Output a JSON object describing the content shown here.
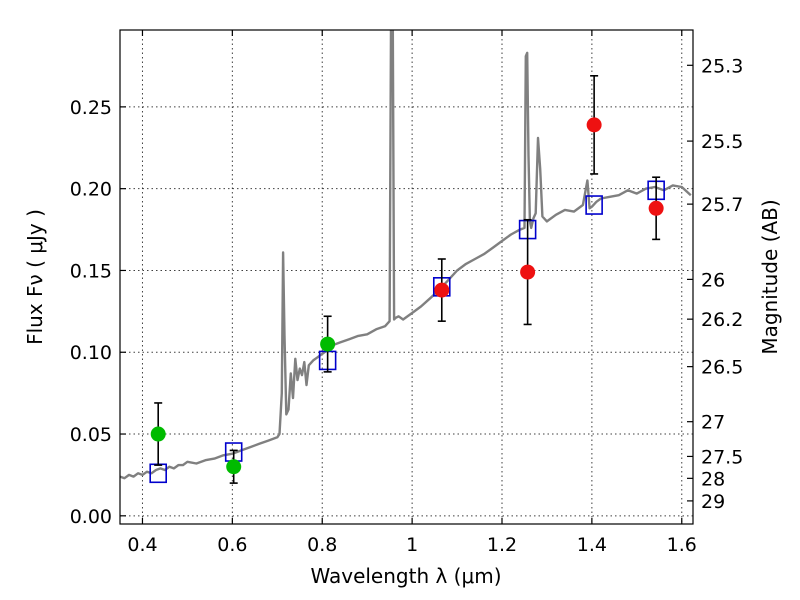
{
  "chart_data": {
    "type": "scatter",
    "title": "",
    "xlabel": "Wavelength  λ (μm)",
    "ylabel": "Flux  Fν  ( μJy )",
    "ylabel_right": "Magnitude (AB)",
    "xlim": [
      0.35,
      1.625
    ],
    "ylim": [
      -0.005,
      0.297
    ],
    "grid": true,
    "x_ticks": [
      0.4,
      0.6,
      0.8,
      1.0,
      1.2,
      1.4,
      1.6
    ],
    "x_tick_labels": [
      "0.4",
      "0.6",
      "0.8",
      "1",
      "1.2",
      "1.4",
      "1.6"
    ],
    "y_ticks": [
      0.0,
      0.05,
      0.1,
      0.15,
      0.2,
      0.25
    ],
    "y_tick_labels": [
      "0.00",
      "0.05",
      "0.10",
      "0.15",
      "0.20",
      "0.25"
    ],
    "mag_ticks": [
      "25.3",
      "25.5",
      "25.7",
      "26",
      "26.2",
      "26.5",
      "27",
      "27.5",
      "28",
      "29"
    ],
    "colors": {
      "spectrum": "#808080",
      "model_box": "#0000cc",
      "green_points": "#00bb00",
      "red_points": "#ee1111",
      "errorbar": "#000000"
    },
    "series": [
      {
        "kind": "line",
        "x": [
          0.35,
          0.36,
          0.37,
          0.38,
          0.39,
          0.4,
          0.41,
          0.42,
          0.43,
          0.44,
          0.45,
          0.46,
          0.47,
          0.48,
          0.49,
          0.5,
          0.52,
          0.54,
          0.56,
          0.58,
          0.6,
          0.62,
          0.64,
          0.66,
          0.68,
          0.7,
          0.705,
          0.71,
          0.713,
          0.716,
          0.72,
          0.725,
          0.73,
          0.735,
          0.74,
          0.745,
          0.75,
          0.755,
          0.76,
          0.765,
          0.77,
          0.78,
          0.79,
          0.8,
          0.81,
          0.82,
          0.84,
          0.86,
          0.88,
          0.9,
          0.92,
          0.94,
          0.95,
          0.953,
          0.955,
          0.957,
          0.96,
          0.963,
          0.97,
          0.98,
          1.0,
          1.02,
          1.04,
          1.06,
          1.08,
          1.1,
          1.12,
          1.14,
          1.16,
          1.18,
          1.2,
          1.22,
          1.24,
          1.25,
          1.253,
          1.256,
          1.259,
          1.262,
          1.265,
          1.27,
          1.275,
          1.28,
          1.285,
          1.29,
          1.3,
          1.32,
          1.34,
          1.36,
          1.38,
          1.39,
          1.395,
          1.4,
          1.41,
          1.42,
          1.44,
          1.46,
          1.48,
          1.5,
          1.52,
          1.54,
          1.56,
          1.58,
          1.6,
          1.62
        ],
        "y": [
          0.024,
          0.023,
          0.025,
          0.024,
          0.026,
          0.025,
          0.027,
          0.026,
          0.028,
          0.029,
          0.028,
          0.03,
          0.029,
          0.031,
          0.031,
          0.033,
          0.032,
          0.034,
          0.035,
          0.037,
          0.038,
          0.04,
          0.042,
          0.044,
          0.046,
          0.048,
          0.05,
          0.075,
          0.161,
          0.11,
          0.062,
          0.065,
          0.087,
          0.072,
          0.096,
          0.083,
          0.09,
          0.086,
          0.094,
          0.08,
          0.092,
          0.095,
          0.097,
          0.099,
          0.101,
          0.104,
          0.106,
          0.108,
          0.11,
          0.111,
          0.114,
          0.116,
          0.119,
          0.3,
          0.3,
          0.3,
          0.12,
          0.121,
          0.122,
          0.12,
          0.124,
          0.128,
          0.133,
          0.138,
          0.144,
          0.15,
          0.154,
          0.157,
          0.16,
          0.164,
          0.168,
          0.172,
          0.175,
          0.176,
          0.281,
          0.283,
          0.22,
          0.18,
          0.176,
          0.182,
          0.185,
          0.231,
          0.212,
          0.183,
          0.18,
          0.184,
          0.187,
          0.186,
          0.19,
          0.205,
          0.188,
          0.189,
          0.192,
          0.194,
          0.195,
          0.196,
          0.199,
          0.197,
          0.2,
          0.201,
          0.199,
          0.202,
          0.201,
          0.196
        ]
      },
      {
        "kind": "model_boxes",
        "x": [
          0.435,
          0.603,
          0.812,
          1.066,
          1.257,
          1.405,
          1.543
        ],
        "y": [
          0.026,
          0.039,
          0.095,
          0.14,
          0.175,
          0.19,
          0.199
        ]
      },
      {
        "kind": "points",
        "color_key": "green_points",
        "x": [
          0.435,
          0.603,
          0.812
        ],
        "y": [
          0.05,
          0.03,
          0.105
        ],
        "err": [
          0.019,
          0.01,
          0.017
        ]
      },
      {
        "kind": "points",
        "color_key": "red_points",
        "x": [
          1.066,
          1.257,
          1.405,
          1.543
        ],
        "y": [
          0.138,
          0.149,
          0.239,
          0.188
        ],
        "err": [
          0.019,
          0.032,
          0.03,
          0.019
        ]
      }
    ]
  }
}
